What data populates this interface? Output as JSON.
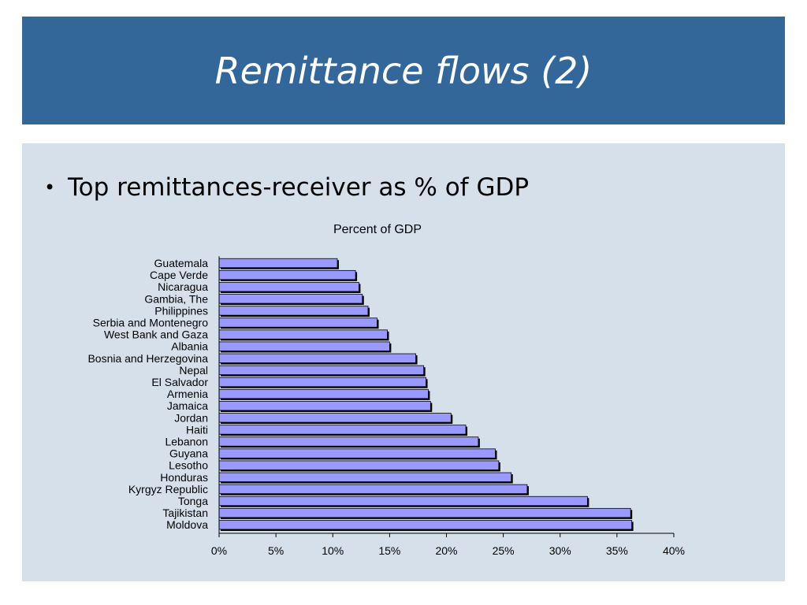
{
  "slide": {
    "title": "Remittance flows (2)",
    "bullet": "Top remittances-receiver as % of GDP"
  },
  "colors": {
    "title_bar": "#336699",
    "panel": "#d6e0ea",
    "bar_fill": "#9999ff",
    "bar_shadow": "#000000"
  },
  "chart_data": {
    "type": "bar",
    "orientation": "horizontal",
    "title": "Percent of GDP",
    "xlim": [
      0,
      40
    ],
    "x_tick_labels": [
      "0%",
      "5%",
      "10%",
      "15%",
      "20%",
      "25%",
      "30%",
      "35%",
      "40%"
    ],
    "grid": false,
    "categories": [
      "Guatemala",
      "Cape Verde",
      "Nicaragua",
      "Gambia, The",
      "Philippines",
      "Serbia and Montenegro",
      "West Bank and Gaza",
      "Albania",
      "Bosnia and Herzegovina",
      "Nepal",
      "El Salvador",
      "Armenia",
      "Jamaica",
      "Jordan",
      "Haiti",
      "Lebanon",
      "Guyana",
      "Lesotho",
      "Honduras",
      "Kyrgyz Republic",
      "Tonga",
      "Tajikistan",
      "Moldova"
    ],
    "values": [
      10.4,
      12.0,
      12.3,
      12.6,
      13.1,
      13.9,
      14.8,
      15.0,
      17.3,
      18.0,
      18.2,
      18.4,
      18.6,
      20.4,
      21.7,
      22.8,
      24.3,
      24.6,
      25.7,
      27.1,
      32.4,
      36.2,
      36.3
    ]
  }
}
